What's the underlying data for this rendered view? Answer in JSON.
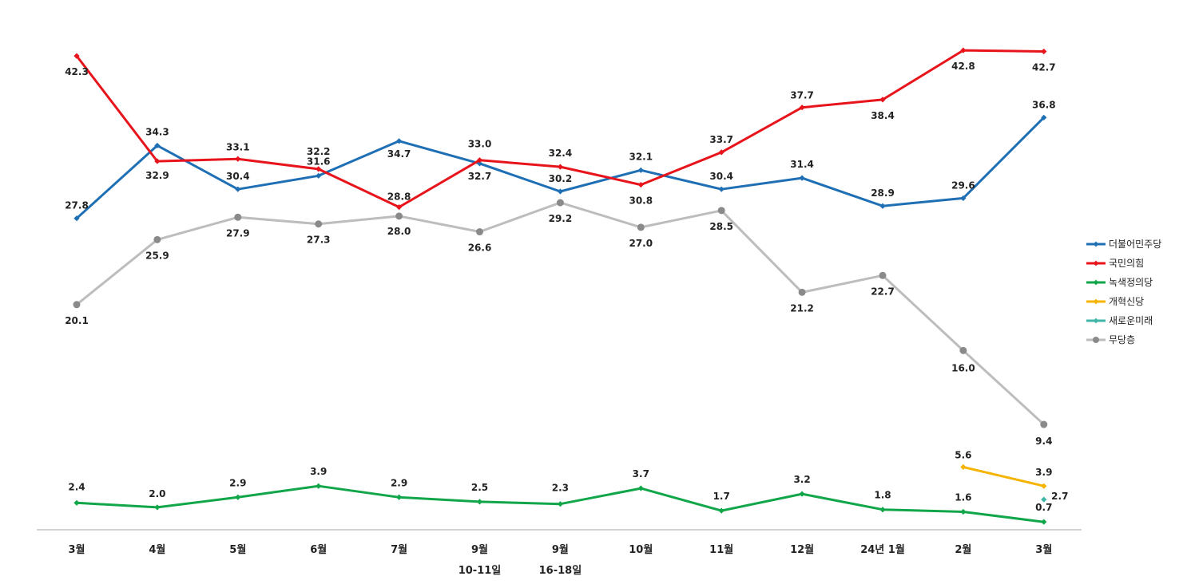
{
  "chart_data": {
    "type": "line",
    "title": "",
    "xlabel": "",
    "ylabel": "",
    "categories": [
      [
        "3월",
        ""
      ],
      [
        "4월",
        ""
      ],
      [
        "5월",
        ""
      ],
      [
        "6월",
        ""
      ],
      [
        "7월",
        ""
      ],
      [
        "9월",
        "10-11일"
      ],
      [
        "9월",
        "16-18일"
      ],
      [
        "10월",
        ""
      ],
      [
        "11월",
        ""
      ],
      [
        "12월",
        ""
      ],
      [
        "24년 1월",
        ""
      ],
      [
        "2월",
        ""
      ],
      [
        "3월",
        ""
      ]
    ],
    "ylim": [
      0,
      45
    ],
    "grid": false,
    "legend_position": "right",
    "series": [
      {
        "name": "더불어민주당",
        "color": "#1f6fb5",
        "marker": "diamond",
        "values": [
          27.8,
          34.3,
          30.4,
          31.6,
          34.7,
          32.7,
          30.2,
          32.1,
          30.4,
          31.4,
          28.9,
          29.6,
          36.8
        ],
        "labels": [
          "27.8",
          "34.3",
          "30.4",
          "31.6",
          "34.7",
          "32.7",
          "30.2",
          "32.1",
          "30.4",
          "31.4",
          "28.9",
          "29.6",
          "36.8"
        ]
      },
      {
        "name": "국민의힘",
        "color": "#e8141b",
        "marker": "diamond",
        "values": [
          42.3,
          32.9,
          33.1,
          32.2,
          28.8,
          33.0,
          32.4,
          30.8,
          33.7,
          37.7,
          38.4,
          42.8,
          42.7
        ],
        "labels": [
          "42.3",
          "32.9",
          "33.1",
          "32.2",
          "28.8",
          "33.0",
          "32.4",
          "30.8",
          "33.7",
          "37.7",
          "38.4",
          "42.8",
          "42.7"
        ]
      },
      {
        "name": "녹색정의당",
        "color": "#12a64a",
        "marker": "diamond",
        "values": [
          2.4,
          2.0,
          2.9,
          3.9,
          2.9,
          2.5,
          2.3,
          3.7,
          1.7,
          3.2,
          1.8,
          1.6,
          0.7
        ],
        "labels": [
          "2.4",
          "2.0",
          "2.9",
          "3.9",
          "2.9",
          "2.5",
          "2.3",
          "3.7",
          "1.7",
          "3.2",
          "1.8",
          "1.6",
          "0.7"
        ]
      },
      {
        "name": "개혁신당",
        "color": "#f5b400",
        "marker": "diamond",
        "values": [
          null,
          null,
          null,
          null,
          null,
          null,
          null,
          null,
          null,
          null,
          null,
          5.6,
          3.9
        ],
        "labels": [
          null,
          null,
          null,
          null,
          null,
          null,
          null,
          null,
          null,
          null,
          null,
          "5.6",
          "3.9"
        ]
      },
      {
        "name": "새로운미래",
        "color": "#3fb6a8",
        "marker": "diamond",
        "values": [
          null,
          null,
          null,
          null,
          null,
          null,
          null,
          null,
          null,
          null,
          null,
          null,
          2.7
        ],
        "labels": [
          null,
          null,
          null,
          null,
          null,
          null,
          null,
          null,
          null,
          null,
          null,
          null,
          "2.7"
        ]
      },
      {
        "name": "무당층",
        "color": "#bdbdbd",
        "marker_color": "#8a8a8a",
        "marker": "circle",
        "values": [
          20.1,
          25.9,
          27.9,
          27.3,
          28.0,
          26.6,
          29.2,
          27.0,
          28.5,
          21.2,
          22.7,
          16.0,
          9.4
        ],
        "labels": [
          "20.1",
          "25.9",
          "27.9",
          "27.3",
          "28.0",
          "26.6",
          "29.2",
          "27.0",
          "28.5",
          "21.2",
          "22.7",
          "16.0",
          "9.4"
        ]
      }
    ]
  }
}
